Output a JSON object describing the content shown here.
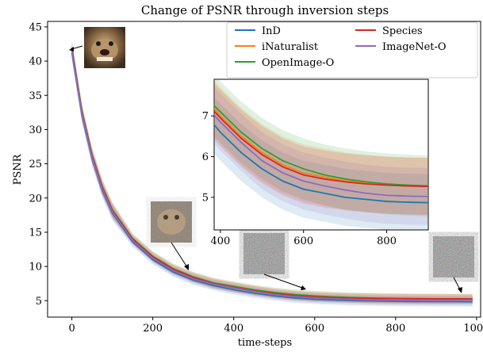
{
  "chart_data": {
    "type": "line",
    "title": "Change of PSNR through inversion steps",
    "xlabel": "time-steps",
    "ylabel": "PSNR",
    "xlim": [
      -60,
      1010
    ],
    "ylim": [
      2.6,
      45.8
    ],
    "xticks": [
      0,
      200,
      400,
      600,
      800,
      1000
    ],
    "yticks": [
      5,
      10,
      15,
      20,
      25,
      30,
      35,
      40,
      45
    ],
    "grid": false,
    "legend_placement": "top-right",
    "model": {
      "asymptote_note": "",
      "x": [
        0,
        25,
        50,
        75,
        100,
        150,
        200,
        250,
        300,
        350,
        400,
        450,
        500,
        550,
        600,
        650,
        700,
        750,
        800,
        850,
        900,
        950,
        990
      ]
    },
    "series": [
      {
        "name": "InD",
        "color": "#1f77b4",
        "x": [
          0,
          25,
          50,
          75,
          100,
          150,
          200,
          250,
          300,
          350,
          400,
          450,
          500,
          550,
          600,
          650,
          700,
          750,
          800,
          850,
          900,
          950,
          990
        ],
        "y": [
          41.2,
          32.0,
          25.7,
          21.1,
          17.8,
          13.6,
          11.0,
          9.2,
          8.0,
          7.2,
          6.6,
          6.1,
          5.7,
          5.4,
          5.2,
          5.1,
          5.0,
          4.95,
          4.9,
          4.88,
          4.87,
          4.86,
          4.85
        ],
        "band": 0.7
      },
      {
        "name": "iNaturalist",
        "color": "#ff7f0e",
        "x": [
          0,
          25,
          50,
          75,
          100,
          150,
          200,
          250,
          300,
          350,
          400,
          450,
          500,
          550,
          600,
          650,
          700,
          750,
          800,
          850,
          900,
          950,
          990
        ],
        "y": [
          41.6,
          32.4,
          26.1,
          21.5,
          18.2,
          14.0,
          11.4,
          9.6,
          8.4,
          7.6,
          7.0,
          6.5,
          6.1,
          5.8,
          5.6,
          5.5,
          5.4,
          5.35,
          5.3,
          5.28,
          5.27,
          5.26,
          5.25
        ],
        "band": 0.7
      },
      {
        "name": "OpenImage-O",
        "color": "#2ca02c",
        "x": [
          0,
          25,
          50,
          75,
          100,
          150,
          200,
          250,
          300,
          350,
          400,
          450,
          500,
          550,
          600,
          650,
          700,
          750,
          800,
          850,
          900,
          950,
          990
        ],
        "y": [
          42.0,
          32.7,
          26.3,
          21.7,
          18.3,
          14.1,
          11.5,
          9.7,
          8.5,
          7.6,
          7.1,
          6.6,
          6.2,
          5.9,
          5.7,
          5.55,
          5.45,
          5.38,
          5.33,
          5.3,
          5.28,
          5.27,
          5.26
        ],
        "band": 0.75
      },
      {
        "name": "Species",
        "color": "#d62728",
        "x": [
          0,
          25,
          50,
          75,
          100,
          150,
          200,
          250,
          300,
          350,
          400,
          450,
          500,
          550,
          600,
          650,
          700,
          750,
          800,
          850,
          900,
          950,
          990
        ],
        "y": [
          41.8,
          32.5,
          26.2,
          21.6,
          18.2,
          14.0,
          11.4,
          9.6,
          8.4,
          7.5,
          6.95,
          6.45,
          6.05,
          5.75,
          5.55,
          5.45,
          5.38,
          5.33,
          5.3,
          5.28,
          5.27,
          5.26,
          5.25
        ],
        "band": 0.7
      },
      {
        "name": "ImageNet-O",
        "color": "#9467bd",
        "x": [
          0,
          25,
          50,
          75,
          100,
          150,
          200,
          250,
          300,
          350,
          400,
          450,
          500,
          550,
          600,
          650,
          700,
          750,
          800,
          850,
          900,
          950,
          990
        ],
        "y": [
          41.4,
          32.2,
          25.9,
          21.3,
          18.0,
          13.8,
          11.2,
          9.4,
          8.2,
          7.4,
          6.85,
          6.35,
          5.9,
          5.6,
          5.4,
          5.28,
          5.18,
          5.1,
          5.05,
          5.03,
          5.02,
          5.01,
          5.0
        ],
        "band": 0.7
      }
    ],
    "inset": {
      "xlim": [
        385,
        900
      ],
      "ylim": [
        4.2,
        7.9
      ],
      "xticks": [
        400,
        600,
        800
      ],
      "yticks": [
        5,
        6,
        7
      ]
    }
  },
  "thumbnails": [
    {
      "step": 0,
      "kind": "clean-animal-photo"
    },
    {
      "step": 300,
      "kind": "slightly-noisy-animal-photo"
    },
    {
      "step": 600,
      "kind": "noise-image"
    },
    {
      "step": 990,
      "kind": "noise-image"
    }
  ]
}
